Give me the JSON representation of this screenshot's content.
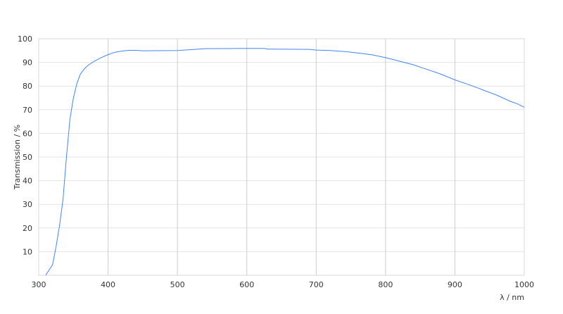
{
  "chart_data": {
    "type": "line",
    "title": "",
    "xlabel": "λ / nm",
    "ylabel": "Transmission / %",
    "xlim": [
      300,
      1000
    ],
    "ylim": [
      0,
      100
    ],
    "xticks": [
      300,
      400,
      500,
      600,
      700,
      800,
      900,
      1000
    ],
    "yticks": [
      10,
      20,
      30,
      40,
      50,
      60,
      70,
      80,
      90,
      100
    ],
    "grid": true,
    "line_color": "#4285f4",
    "series": [
      {
        "x": [
          310,
          320,
          325,
          330,
          335,
          340,
          345,
          350,
          355,
          360,
          365,
          370,
          380,
          390,
          400,
          410,
          420,
          430,
          440,
          450,
          500,
          520,
          540,
          600,
          625,
          630,
          690,
          700,
          720,
          740,
          760,
          780,
          800,
          820,
          840,
          860,
          880,
          900,
          920,
          940,
          960,
          980,
          990,
          1000
        ],
        "y": [
          0,
          4.5,
          12,
          21,
          32,
          50,
          66,
          75,
          81,
          85,
          87,
          88.5,
          90.5,
          92,
          93.3,
          94.3,
          94.8,
          95.1,
          95.1,
          94.9,
          95,
          95.4,
          95.8,
          95.9,
          95.9,
          95.6,
          95.5,
          95.2,
          95,
          94.6,
          94,
          93.2,
          92,
          90.5,
          89,
          87,
          85,
          82.6,
          80.6,
          78.4,
          76.2,
          73.5,
          72.5,
          71
        ]
      }
    ]
  }
}
